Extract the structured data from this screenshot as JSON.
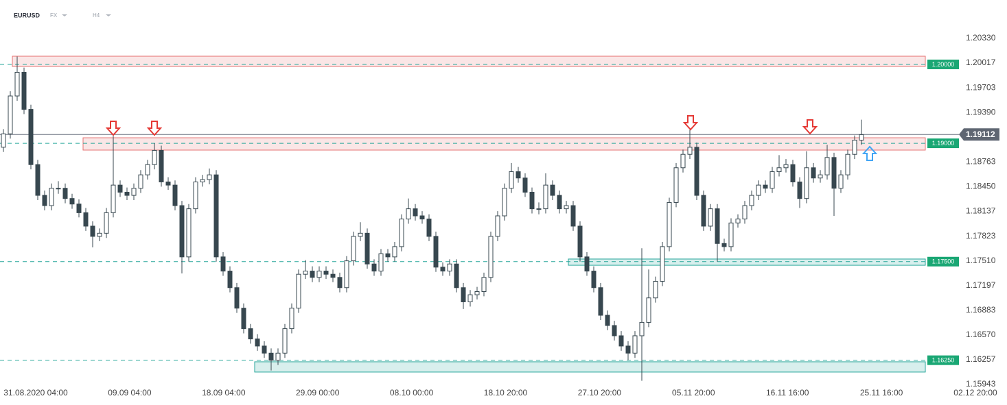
{
  "chart_data": {
    "type": "candlestick",
    "symbol": "EURUSD",
    "market": "FX",
    "timeframe": "H4",
    "x_labels": [
      "31.08.2020  04:00",
      "09.09  04:00",
      "18.09  04:00",
      "29.09  00:00",
      "08.10  00:00",
      "18.10  20:00",
      "27.10  20:00",
      "05.11  20:00",
      "16.11  16:00",
      "25.11  16:00",
      "02.12  20:00"
    ],
    "ylim": [
      1.15943,
      1.2033
    ],
    "yticks": [
      {
        "value": 1.2033,
        "label": "1.20330"
      },
      1.20017,
      1.19703,
      {
        "value": 1.1939,
        "label": "1.19390"
      },
      1.18763,
      {
        "value": 1.1845,
        "label": "1.18450"
      },
      1.18137,
      1.17823,
      {
        "value": 1.1751,
        "label": "1.17510"
      },
      1.17197,
      1.16883,
      {
        "value": 1.1657,
        "label": "1.16570"
      },
      1.16257,
      1.15943
    ],
    "last_price": 1.19112,
    "up_color": "#ffffff",
    "down_color": "#37474f",
    "zones": [
      {
        "level": {
          "value": 1.2,
          "label": "1.20000"
        },
        "top": 1.20104,
        "bottom": 1.19974,
        "color": "#e57373"
      },
      {
        "level": {
          "value": 1.19,
          "label": "1.19000"
        },
        "top": 1.1907,
        "bottom": 1.18914,
        "color": "#e57373"
      },
      {
        "level": {
          "value": 1.175,
          "label": "1.17500"
        },
        "top": 1.17533,
        "bottom": 1.17454,
        "color": "#26a69a"
      },
      {
        "level": {
          "value": 1.1625,
          "label": "1.16250"
        },
        "top": 1.1623,
        "bottom": 1.161,
        "color": "#26a69a"
      }
    ],
    "open": [
      1.1895,
      1.1912,
      1.196,
      1.199,
      1.1943,
      1.1873,
      1.1834,
      1.1821,
      1.1843,
      1.1843,
      1.183,
      1.1823,
      1.1812,
      1.1795,
      1.1782,
      1.1786,
      1.1812,
      1.1847,
      1.1838,
      1.1834,
      1.1843,
      1.186,
      1.1873,
      1.1891,
      1.1851,
      1.1847,
      1.1821,
      1.1756,
      1.1817,
      1.1851,
      1.1854,
      1.186,
      1.1756,
      1.1738,
      1.1717,
      1.1691,
      1.1665,
      1.1652,
      1.1643,
      1.1634,
      1.1625,
      1.1634,
      1.1665,
      1.1691,
      1.1734,
      1.1738,
      1.173,
      1.1738,
      1.1734,
      1.173,
      1.1717,
      1.1751,
      1.1782,
      1.1786,
      1.1747,
      1.1738,
      1.176,
      1.1756,
      1.1769,
      1.1804,
      1.1817,
      1.1808,
      1.1804,
      1.1782,
      1.1743,
      1.1738,
      1.1747,
      1.1717,
      1.1699,
      1.1708,
      1.1712,
      1.173,
      1.1782,
      1.1808,
      1.1843,
      1.1864,
      1.1856,
      1.1838,
      1.1817,
      1.1817,
      1.1847,
      1.1834,
      1.1817,
      1.1821,
      1.1795,
      1.1756,
      1.1738,
      1.1717,
      1.1682,
      1.1669,
      1.1656,
      1.1643,
      1.1634,
      1.1656,
      1.1673,
      1.1704,
      1.1725,
      1.1769,
      1.1825,
      1.1869,
      1.1886,
      1.1895,
      1.1834,
      1.1795,
      1.1817,
      1.1773,
      1.1769,
      1.1799,
      1.1804,
      1.1821,
      1.1834,
      1.1847,
      1.1843,
      1.1864,
      1.1869,
      1.1873,
      1.1851,
      1.183,
      1.1869,
      1.1856,
      1.186,
      1.1882,
      1.1843,
      1.186,
      1.1886,
      1.1904
    ],
    "high": [
      1.1918,
      1.1966,
      1.201,
      1.1996,
      1.1949,
      1.1879,
      1.184,
      1.1849,
      1.1852,
      1.1849,
      1.1836,
      1.1829,
      1.1818,
      1.1801,
      1.1792,
      1.1818,
      1.191,
      1.1853,
      1.1844,
      1.1849,
      1.1866,
      1.1879,
      1.19,
      1.1897,
      1.1857,
      1.1853,
      1.1827,
      1.1823,
      1.1857,
      1.186,
      1.1868,
      1.1866,
      1.1762,
      1.1744,
      1.1723,
      1.1697,
      1.1671,
      1.1658,
      1.1649,
      1.164,
      1.164,
      1.1671,
      1.1697,
      1.174,
      1.1752,
      1.1744,
      1.1744,
      1.1744,
      1.174,
      1.1736,
      1.1757,
      1.1788,
      1.18,
      1.1792,
      1.1753,
      1.1766,
      1.1766,
      1.1775,
      1.181,
      1.183,
      1.1823,
      1.1814,
      1.181,
      1.1788,
      1.1749,
      1.1753,
      1.1753,
      1.1723,
      1.1714,
      1.1718,
      1.1736,
      1.1788,
      1.1814,
      1.1849,
      1.1875,
      1.187,
      1.1862,
      1.1844,
      1.1825,
      1.1862,
      1.1853,
      1.184,
      1.1827,
      1.1827,
      1.1801,
      1.1762,
      1.1744,
      1.1723,
      1.1688,
      1.1675,
      1.1662,
      1.1649,
      1.1662,
      1.1767,
      1.174,
      1.1731,
      1.1775,
      1.1831,
      1.1875,
      1.1892,
      1.1917,
      1.1901,
      1.184,
      1.1823,
      1.1823,
      1.1779,
      1.1805,
      1.181,
      1.1827,
      1.184,
      1.1853,
      1.1853,
      1.187,
      1.1885,
      1.188,
      1.1879,
      1.1857,
      1.189,
      1.1875,
      1.1866,
      1.1898,
      1.1888,
      1.1866,
      1.1892,
      1.191,
      1.193
    ],
    "low": [
      1.1889,
      1.1906,
      1.1954,
      1.1937,
      1.1867,
      1.1828,
      1.1815,
      1.1815,
      1.1836,
      1.1824,
      1.1817,
      1.1806,
      1.1789,
      1.1768,
      1.1776,
      1.178,
      1.1806,
      1.1832,
      1.1828,
      1.1828,
      1.1837,
      1.1854,
      1.1867,
      1.1845,
      1.1841,
      1.1815,
      1.1735,
      1.175,
      1.1811,
      1.1845,
      1.1848,
      1.175,
      1.1732,
      1.1711,
      1.1685,
      1.1659,
      1.1646,
      1.1637,
      1.1628,
      1.1612,
      1.1619,
      1.1628,
      1.1659,
      1.1685,
      1.1728,
      1.1724,
      1.1724,
      1.1728,
      1.1724,
      1.1711,
      1.1711,
      1.1745,
      1.1776,
      1.1741,
      1.1732,
      1.1732,
      1.175,
      1.175,
      1.1763,
      1.1798,
      1.1802,
      1.1798,
      1.1776,
      1.1737,
      1.1732,
      1.1732,
      1.1711,
      1.169,
      1.1693,
      1.1702,
      1.1706,
      1.1724,
      1.1776,
      1.1802,
      1.1837,
      1.185,
      1.1832,
      1.1811,
      1.181,
      1.1811,
      1.1828,
      1.1811,
      1.1811,
      1.1789,
      1.175,
      1.1732,
      1.1711,
      1.1676,
      1.1663,
      1.165,
      1.1637,
      1.1625,
      1.1628,
      1.1599,
      1.1667,
      1.1698,
      1.1719,
      1.1763,
      1.1819,
      1.1863,
      1.188,
      1.1828,
      1.1789,
      1.1789,
      1.175,
      1.1763,
      1.1763,
      1.1793,
      1.1798,
      1.1815,
      1.1828,
      1.1837,
      1.1837,
      1.1858,
      1.1863,
      1.1845,
      1.1818,
      1.1824,
      1.185,
      1.185,
      1.1854,
      1.1808,
      1.1837,
      1.1854,
      1.188,
      1.1898
    ],
    "close": [
      1.1912,
      1.196,
      1.199,
      1.1943,
      1.1873,
      1.1834,
      1.1821,
      1.1843,
      1.1843,
      1.183,
      1.1823,
      1.1812,
      1.1795,
      1.1782,
      1.1786,
      1.1812,
      1.1847,
      1.1838,
      1.1834,
      1.1843,
      1.186,
      1.1873,
      1.1891,
      1.1851,
      1.1847,
      1.1821,
      1.1756,
      1.1817,
      1.1851,
      1.1854,
      1.186,
      1.1756,
      1.1738,
      1.1717,
      1.1691,
      1.1665,
      1.1652,
      1.1643,
      1.1634,
      1.1625,
      1.1634,
      1.1665,
      1.1691,
      1.1734,
      1.1738,
      1.173,
      1.1738,
      1.1734,
      1.173,
      1.1717,
      1.1751,
      1.1782,
      1.1786,
      1.1747,
      1.1738,
      1.176,
      1.1756,
      1.1769,
      1.1804,
      1.1817,
      1.1808,
      1.1804,
      1.1782,
      1.1743,
      1.1738,
      1.1747,
      1.1717,
      1.1699,
      1.1708,
      1.1712,
      1.173,
      1.1782,
      1.1808,
      1.1843,
      1.1864,
      1.1856,
      1.1838,
      1.1817,
      1.1817,
      1.1847,
      1.1834,
      1.1817,
      1.1821,
      1.1795,
      1.1756,
      1.1738,
      1.1717,
      1.1682,
      1.1669,
      1.1656,
      1.1643,
      1.1634,
      1.1656,
      1.1673,
      1.1704,
      1.1725,
      1.1769,
      1.1825,
      1.1869,
      1.1886,
      1.1895,
      1.1834,
      1.1795,
      1.1817,
      1.1773,
      1.1769,
      1.1799,
      1.1804,
      1.1821,
      1.1834,
      1.1847,
      1.1843,
      1.1864,
      1.1869,
      1.1873,
      1.1851,
      1.183,
      1.1869,
      1.1856,
      1.186,
      1.1882,
      1.1843,
      1.186,
      1.1886,
      1.1904,
      1.1911
    ]
  }
}
